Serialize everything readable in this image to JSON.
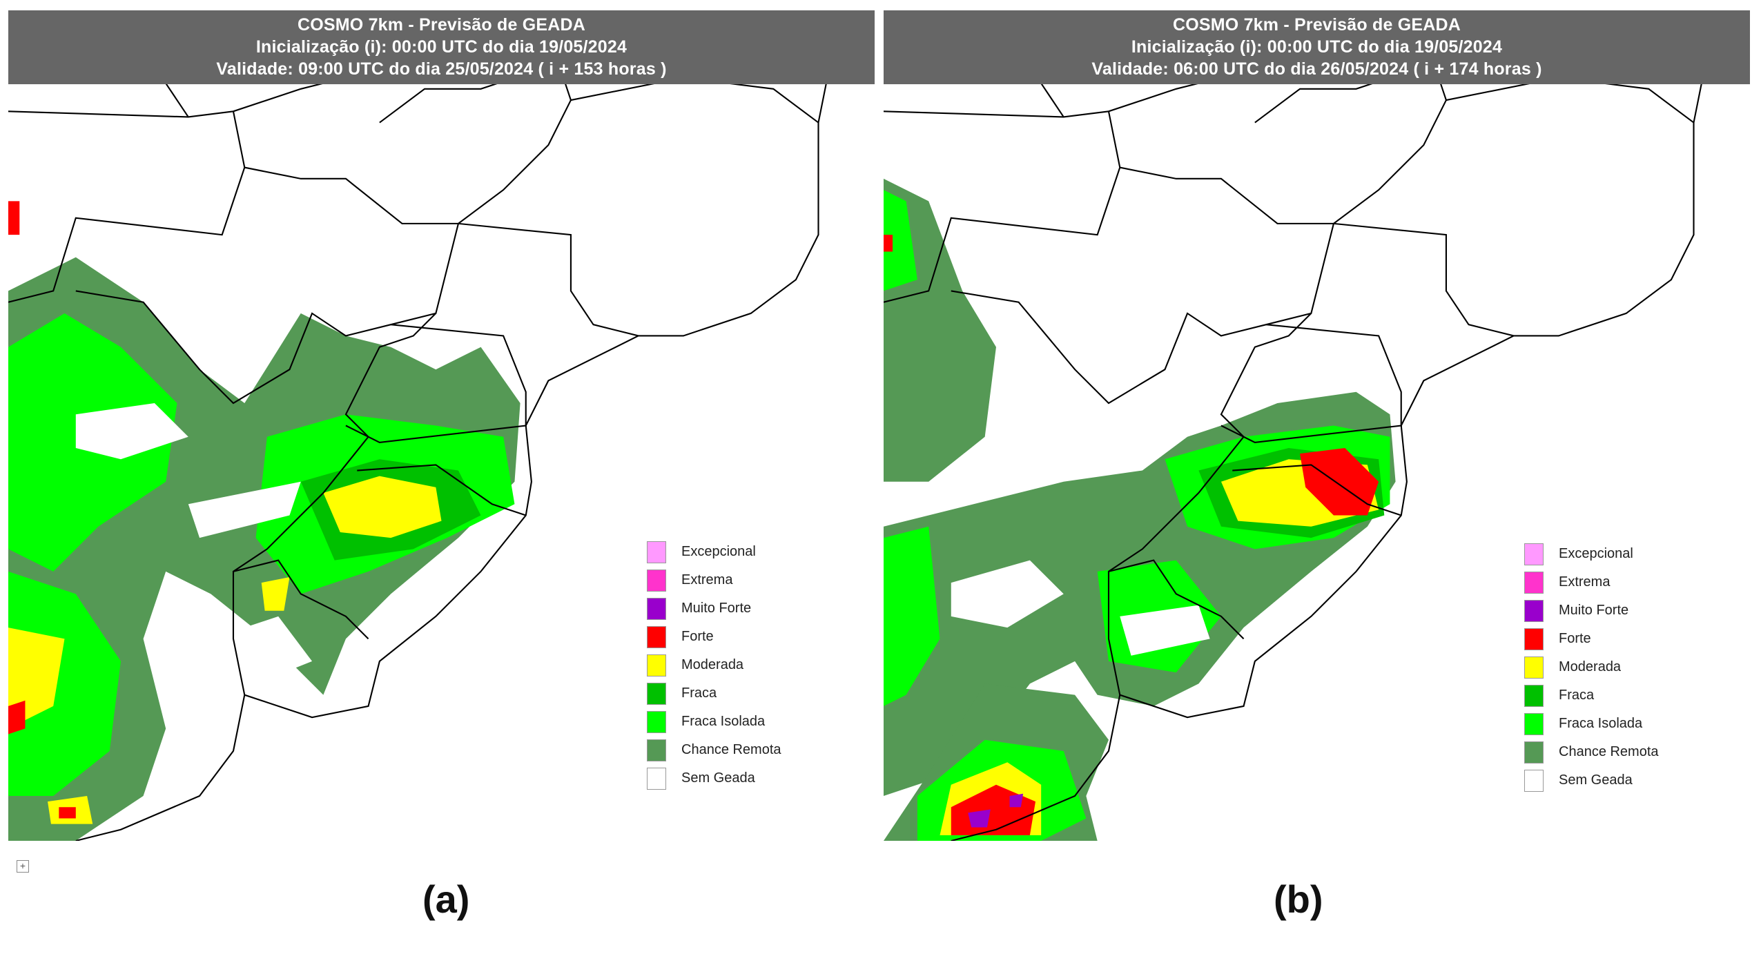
{
  "panels": [
    {
      "title": "COSMO 7km - Previsão de GEADA",
      "init": "Inicialização (i): 00:00 UTC do dia 19/05/2024",
      "validity": "Validade: 09:00 UTC do dia 25/05/2024 ( i + 153 horas )",
      "caption": "(a)"
    },
    {
      "title": "COSMO 7km - Previsão de GEADA",
      "init": "Inicialização (i): 00:00 UTC do dia 19/05/2024",
      "validity": "Validade: 06:00 UTC do dia 26/05/2024 ( i + 174 horas )",
      "caption": "(b)"
    }
  ],
  "legend": [
    {
      "label": "Excepcional",
      "color": "#ff99ff"
    },
    {
      "label": "Extrema",
      "color": "#ff33cc"
    },
    {
      "label": "Muito Forte",
      "color": "#9900cc"
    },
    {
      "label": "Forte",
      "color": "#ff0000"
    },
    {
      "label": "Moderada",
      "color": "#ffff00"
    },
    {
      "label": "Fraca",
      "color": "#00c000"
    },
    {
      "label": "Fraca Isolada",
      "color": "#00ff00"
    },
    {
      "label": "Chance Remota",
      "color": "#559955"
    },
    {
      "label": "Sem Geada",
      "color": "#ffffff"
    }
  ],
  "icons": {
    "table_handle": "move-icon"
  }
}
